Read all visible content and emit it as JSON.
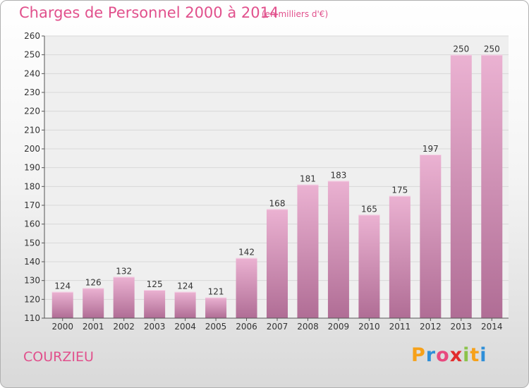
{
  "header": {
    "title": "Charges de Personnel 2000 à 2014",
    "unit": "(en milliers d'€)"
  },
  "footer": {
    "commune": "COURZIEU",
    "logo": {
      "letters": [
        "P",
        "r",
        "o",
        "x",
        "i",
        "t",
        "i"
      ],
      "colors": [
        "#f6a11a",
        "#2f8fd8",
        "#e84a7f",
        "#e22d2d",
        "#8bc34a",
        "#f6a11a",
        "#2f8fd8"
      ]
    }
  },
  "colors": {
    "bar_light": "#ebb2d2",
    "bar_dark": "#b06d95",
    "text": "#e1508c",
    "grid": "#d8d8d8"
  },
  "chart_data": {
    "type": "bar",
    "title": "Charges de Personnel 2000 à 2014",
    "subtitle": "(en milliers d'€)",
    "categories": [
      "2000",
      "2001",
      "2002",
      "2003",
      "2004",
      "2005",
      "2006",
      "2007",
      "2008",
      "2009",
      "2010",
      "2011",
      "2012",
      "2013",
      "2014"
    ],
    "values": [
      124,
      126,
      132,
      125,
      124,
      121,
      142,
      168,
      181,
      183,
      165,
      175,
      197,
      250,
      250
    ],
    "ylim": [
      110,
      260
    ],
    "yticks": [
      110,
      120,
      130,
      140,
      150,
      160,
      170,
      180,
      190,
      200,
      210,
      220,
      230,
      240,
      250,
      260
    ],
    "grid": true,
    "legend": "none"
  }
}
